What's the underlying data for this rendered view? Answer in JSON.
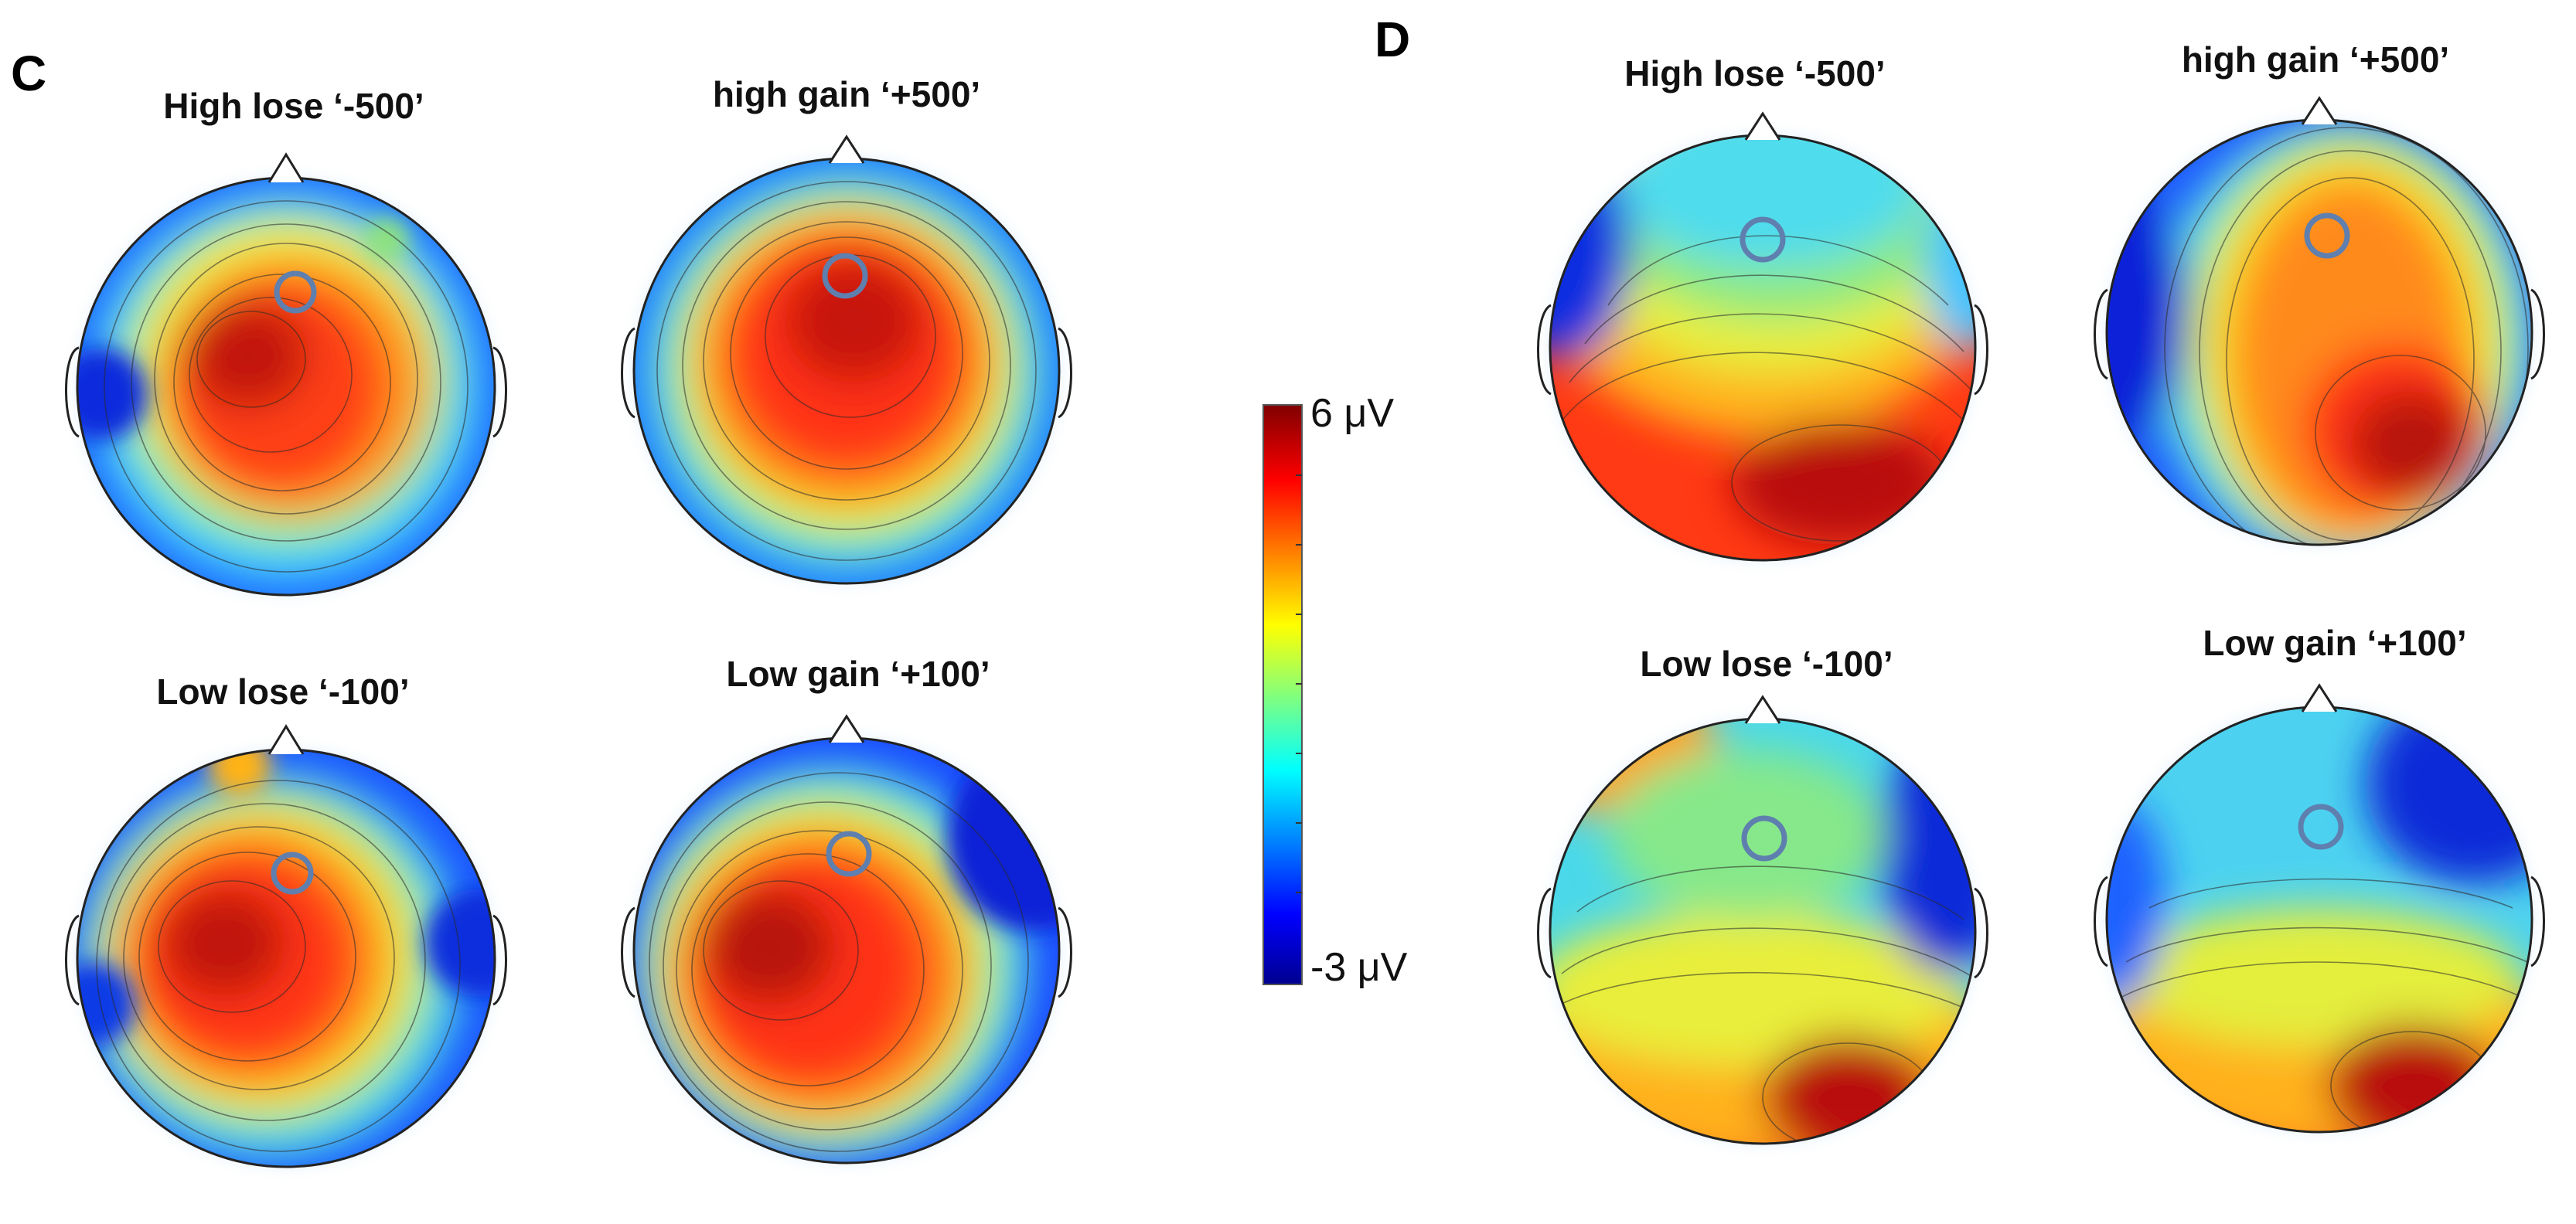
{
  "panels": [
    {
      "letter": "C",
      "maps": [
        {
          "title": "High lose ‘-500’",
          "highlighted_electrode": "Fz"
        },
        {
          "title": "high gain ‘+500’",
          "highlighted_electrode": "Fz"
        },
        {
          "title": "Low lose ‘-100’",
          "highlighted_electrode": "Fz"
        },
        {
          "title": "Low gain ‘+100’",
          "highlighted_electrode": "Fz"
        }
      ]
    },
    {
      "letter": "D",
      "maps": [
        {
          "title": "High lose ‘-500’",
          "highlighted_electrode": "Fz"
        },
        {
          "title": "high gain ‘+500’",
          "highlighted_electrode": "Fz"
        },
        {
          "title": "Low lose ‘-100’",
          "highlighted_electrode": "Fz"
        },
        {
          "title": "Low gain ‘+100’",
          "highlighted_electrode": "Fz"
        }
      ]
    }
  ],
  "colorbar": {
    "max_label": "6 μV",
    "min_label": "-3 μV",
    "colormap": [
      "#00008f",
      "#0000ff",
      "#00ffff",
      "#ffff00",
      "#ff0000",
      "#800000"
    ]
  },
  "highlight_color": "#5f7fae"
}
